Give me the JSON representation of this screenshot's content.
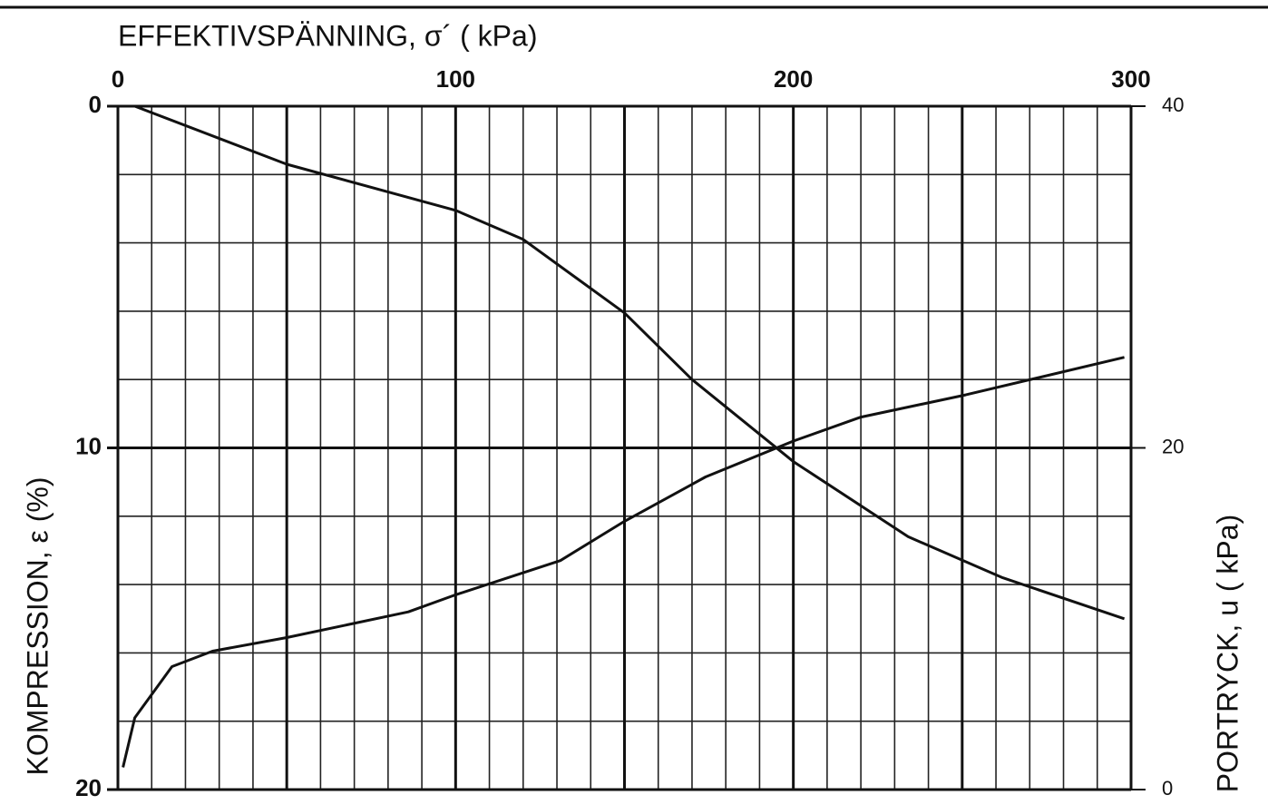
{
  "chart_data": {
    "type": "line",
    "title": "EFFEKTIVSPÄNNING, σ´ ( kPa)",
    "y_label": "KOMPRESSION, ε (%)",
    "y2_label": "PORTRYCK, u ( kPa)",
    "xlim": [
      0,
      300
    ],
    "xticks": [
      0,
      100,
      200,
      300
    ],
    "xminor": [
      0,
      10,
      20,
      30,
      40,
      50,
      60,
      70,
      80,
      90,
      100,
      110,
      120,
      130,
      140,
      150,
      160,
      170,
      180,
      190,
      200,
      210,
      220,
      230,
      240,
      250,
      260,
      270,
      280,
      290,
      300
    ],
    "xmajor": [
      0,
      50,
      100,
      150,
      200,
      250,
      300
    ],
    "ylim": [
      0,
      20
    ],
    "y_inverted": true,
    "yticks": [
      0,
      10,
      20
    ],
    "yminor": [
      0,
      2,
      4,
      6,
      8,
      10,
      12,
      14,
      16,
      18,
      20
    ],
    "ymajor": [
      0,
      10,
      20
    ],
    "y2lim": [
      0,
      40
    ],
    "y2ticks": [
      0,
      20,
      40
    ],
    "grid": true,
    "series": [
      {
        "color": "#111111",
        "x": [
          5,
          50,
          100,
          120,
          150,
          170,
          200,
          234,
          262,
          298
        ],
        "values": [
          0,
          1.7,
          3.05,
          3.9,
          6.05,
          8.0,
          10.4,
          12.6,
          13.8,
          15.0
        ]
      },
      {
        "color": "#111111",
        "axis": "y2",
        "x": [
          1.5,
          5,
          16,
          28,
          50,
          86,
          100,
          131,
          150,
          174,
          200,
          220,
          251,
          298
        ],
        "values": [
          1.3,
          4.2,
          7.2,
          8.1,
          8.9,
          10.4,
          11.4,
          13.4,
          15.7,
          18.3,
          20.4,
          21.8,
          23.1,
          25.3
        ]
      }
    ]
  }
}
